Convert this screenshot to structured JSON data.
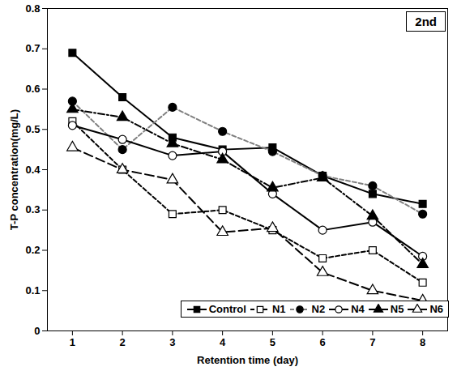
{
  "chart_data": {
    "type": "line",
    "title": "2nd",
    "x_label": "Retention time (day)",
    "y_label": "T-P concentration(mg/L)",
    "x": [
      1,
      2,
      3,
      4,
      5,
      6,
      7,
      8
    ],
    "xlim": [
      0.5,
      8.5
    ],
    "xticks": [
      1,
      2,
      3,
      4,
      5,
      6,
      7,
      8
    ],
    "ylim": [
      0,
      0.8
    ],
    "yticks": [
      0,
      0.1,
      0.2,
      0.3,
      0.4,
      0.5,
      0.6,
      0.7,
      0.8
    ],
    "grid": false,
    "legend": "bottom-right",
    "series": [
      {
        "name": "Control",
        "color": "#000000",
        "marker": "square-filled",
        "line_style": "solid",
        "values": [
          0.69,
          0.58,
          0.48,
          0.45,
          0.455,
          0.385,
          0.34,
          0.315
        ]
      },
      {
        "name": "N1",
        "color": "#000000",
        "marker": "square-open",
        "line_style": "dashed",
        "values": [
          0.52,
          0.4,
          0.29,
          0.3,
          0.25,
          0.18,
          0.2,
          0.12
        ]
      },
      {
        "name": "N2",
        "color": "#808080",
        "marker": "circle-filled",
        "line_style": "dashed",
        "values": [
          0.57,
          0.45,
          0.555,
          0.495,
          0.445,
          0.385,
          0.36,
          0.29
        ]
      },
      {
        "name": "N4",
        "color": "#000000",
        "marker": "circle-open",
        "line_style": "solid",
        "values": [
          0.51,
          0.475,
          0.435,
          0.445,
          0.34,
          0.25,
          0.27,
          0.185
        ]
      },
      {
        "name": "N5",
        "color": "#000000",
        "marker": "triangle-filled",
        "line_style": "dash-dot",
        "values": [
          0.55,
          0.53,
          0.465,
          0.425,
          0.355,
          0.38,
          0.285,
          0.165
        ]
      },
      {
        "name": "N6",
        "color": "#000000",
        "marker": "triangle-open",
        "line_style": "long-dash",
        "values": [
          0.455,
          0.4,
          0.375,
          0.245,
          0.255,
          0.145,
          0.1,
          0.075
        ]
      }
    ]
  }
}
